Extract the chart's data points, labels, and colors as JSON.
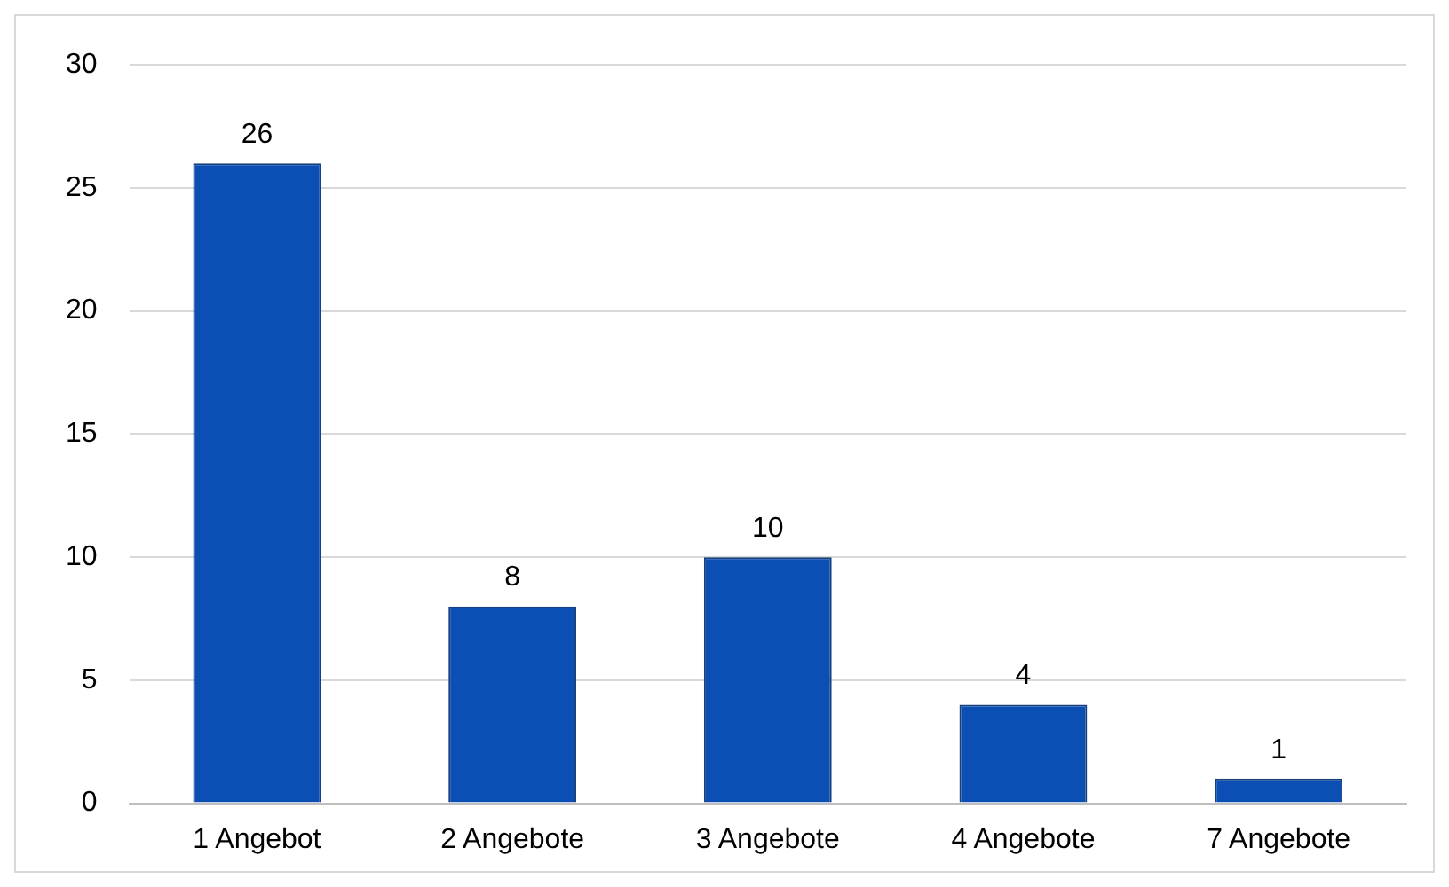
{
  "chart_data": {
    "type": "bar",
    "categories": [
      "1 Angebot",
      "2 Angebote",
      "3 Angebote",
      "4 Angebote",
      "7 Angebote"
    ],
    "values": [
      26,
      8,
      10,
      4,
      1
    ],
    "color": "#0b4fb5",
    "ylim": [
      0,
      30
    ],
    "yticks": [
      0,
      5,
      10,
      15,
      20,
      25,
      30
    ],
    "grid": "y",
    "data_labels": true,
    "legend": false
  }
}
